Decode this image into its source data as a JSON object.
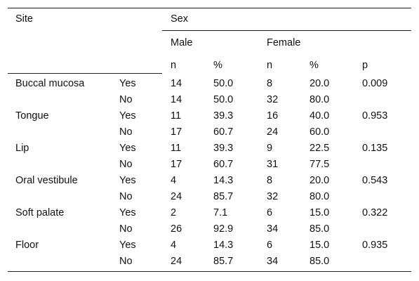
{
  "header": {
    "site": "Site",
    "sex": "Sex",
    "male": "Male",
    "female": "Female",
    "male_n": "n",
    "male_pct": "%",
    "female_n": "n",
    "female_pct": "%",
    "p": "p"
  },
  "rows": [
    {
      "site": "Buccal mucosa",
      "ans": "Yes",
      "male_n": "14",
      "male_pct": "50.0",
      "female_n": "8",
      "female_pct": "20.0",
      "p": "0.009"
    },
    {
      "site": "",
      "ans": "No",
      "male_n": "14",
      "male_pct": "50.0",
      "female_n": "32",
      "female_pct": "80.0",
      "p": ""
    },
    {
      "site": "Tongue",
      "ans": "Yes",
      "male_n": "11",
      "male_pct": "39.3",
      "female_n": "16",
      "female_pct": "40.0",
      "p": "0.953"
    },
    {
      "site": "",
      "ans": "No",
      "male_n": "17",
      "male_pct": "60.7",
      "female_n": "24",
      "female_pct": "60.0",
      "p": ""
    },
    {
      "site": "Lip",
      "ans": "Yes",
      "male_n": "11",
      "male_pct": "39.3",
      "female_n": "9",
      "female_pct": "22.5",
      "p": "0.135"
    },
    {
      "site": "",
      "ans": "No",
      "male_n": "17",
      "male_pct": "60.7",
      "female_n": "31",
      "female_pct": "77.5",
      "p": ""
    },
    {
      "site": "Oral vestibule",
      "ans": "Yes",
      "male_n": "4",
      "male_pct": "14.3",
      "female_n": "8",
      "female_pct": "20.0",
      "p": "0.543"
    },
    {
      "site": "",
      "ans": "No",
      "male_n": "24",
      "male_pct": "85.7",
      "female_n": "32",
      "female_pct": "80.0",
      "p": ""
    },
    {
      "site": "Soft palate",
      "ans": "Yes",
      "male_n": "2",
      "male_pct": "7.1",
      "female_n": "6",
      "female_pct": "15.0",
      "p": "0.322"
    },
    {
      "site": "",
      "ans": "No",
      "male_n": "26",
      "male_pct": "92.9",
      "female_n": "34",
      "female_pct": "85.0",
      "p": ""
    },
    {
      "site": "Floor",
      "ans": "Yes",
      "male_n": "4",
      "male_pct": "14.3",
      "female_n": "6",
      "female_pct": "15.0",
      "p": "0.935"
    },
    {
      "site": "",
      "ans": "No",
      "male_n": "24",
      "male_pct": "85.7",
      "female_n": "34",
      "female_pct": "85.0",
      "p": ""
    }
  ]
}
